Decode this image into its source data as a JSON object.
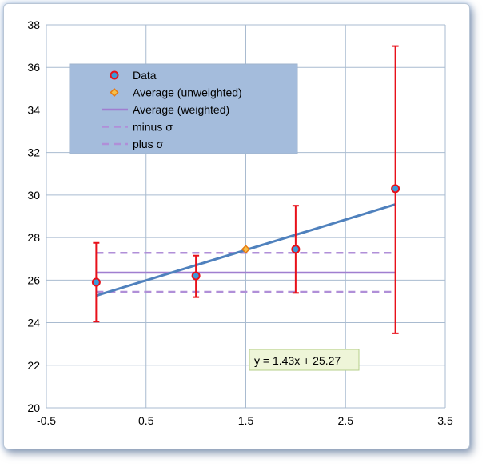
{
  "chart_data": {
    "type": "scatter",
    "title": "",
    "xlabel": "",
    "ylabel": "",
    "xlim": [
      -0.5,
      3.5
    ],
    "ylim": [
      20,
      38
    ],
    "xticks": [
      -0.5,
      0.5,
      1.5,
      2.5,
      3.5
    ],
    "yticks": [
      20,
      22,
      24,
      26,
      28,
      30,
      32,
      34,
      36,
      38
    ],
    "xtick_labels": [
      "-0.5",
      "0.5",
      "1.5",
      "2.5",
      "3.5"
    ],
    "ytick_labels": [
      "20",
      "22",
      "24",
      "26",
      "28",
      "30",
      "32",
      "34",
      "36",
      "38"
    ],
    "grid": true,
    "legend_placement": "top-left",
    "series": [
      {
        "name": "Data",
        "kind": "points_with_error",
        "color": "#e8101a",
        "fill": "#3a9ad9",
        "points": [
          {
            "x": 0,
            "y": 25.9,
            "err_low": 24.05,
            "err_high": 27.75
          },
          {
            "x": 1,
            "y": 26.2,
            "err_low": 25.2,
            "err_high": 27.15
          },
          {
            "x": 2,
            "y": 27.45,
            "err_low": 25.4,
            "err_high": 29.5
          },
          {
            "x": 3,
            "y": 30.3,
            "err_low": 23.5,
            "err_high": 37.0
          }
        ]
      },
      {
        "name": "Average (unweighted)",
        "kind": "point",
        "color": "#e87a10",
        "fill": "#f5c04a",
        "points": [
          {
            "x": 1.5,
            "y": 27.45
          }
        ]
      },
      {
        "name": "Average (weighted)",
        "kind": "hline",
        "color": "#a07ed0",
        "y": 26.35,
        "x_range": [
          0,
          3
        ]
      },
      {
        "name": "minus σ",
        "kind": "hline_dashed",
        "color": "#b08fd8",
        "y": 25.45,
        "x_range": [
          0,
          3
        ]
      },
      {
        "name": "plus σ",
        "kind": "hline_dashed",
        "color": "#b08fd8",
        "y": 27.28,
        "x_range": [
          0,
          3
        ]
      }
    ],
    "trendline": {
      "color": "#4f81bd",
      "slope": 1.43,
      "intercept": 25.27,
      "x_range": [
        0,
        3
      ],
      "equation": "y = 1.43x + 25.27"
    },
    "legend_entries": [
      "Data",
      "Average (unweighted)",
      "Average (weighted)",
      "minus σ",
      "plus σ"
    ]
  },
  "colors": {
    "grid": "#a9bbd0",
    "legend_bg": "#a4bcdc",
    "legend_border": "#9fb3cc",
    "eq_bg": "#eef5d8",
    "eq_border": "#b6cf8a"
  }
}
